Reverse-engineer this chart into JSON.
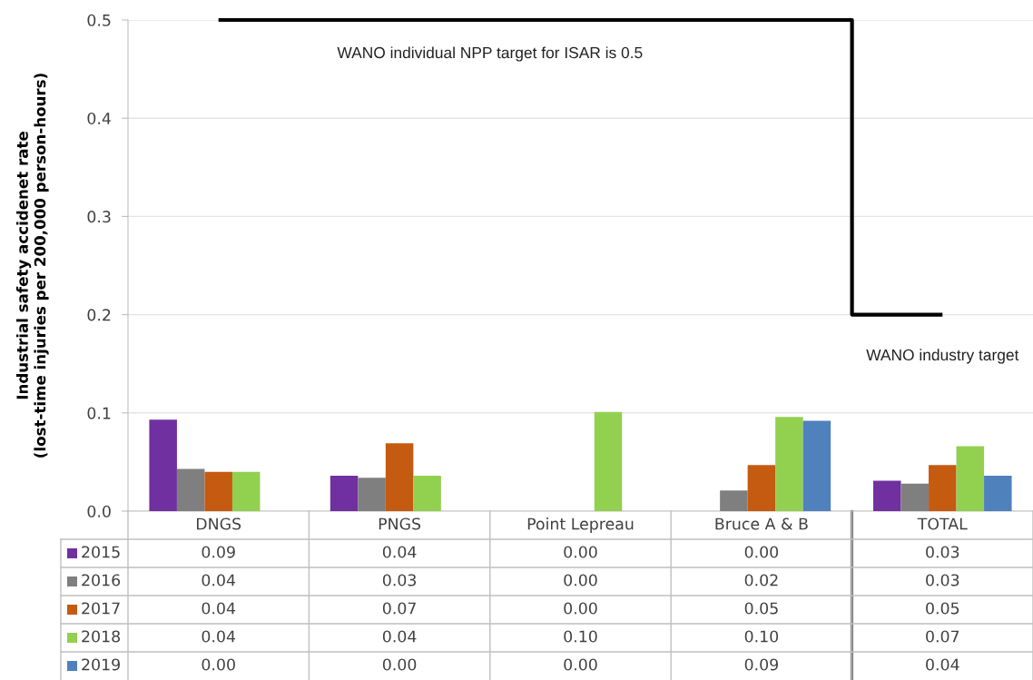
{
  "chart_data": {
    "type": "bar",
    "ylabel": "Industrial safety accidenet rate\n(lost-time injuries per 200,000 person-hours)",
    "categories": [
      "DNGS",
      "PNGS",
      "Point Lepreau",
      "Bruce A & B",
      "TOTAL"
    ],
    "series": [
      {
        "name": "2015",
        "color": "#7030a0",
        "values": [
          0.093,
          0.036,
          0,
          0,
          0.031
        ],
        "value_labels": [
          "0.09",
          "0.04",
          "0.00",
          "0.00",
          "0.03"
        ]
      },
      {
        "name": "2016",
        "color": "#7f7f7f",
        "values": [
          0.043,
          0.034,
          0,
          0.021,
          0.028
        ],
        "value_labels": [
          "0.04",
          "0.03",
          "0.00",
          "0.02",
          "0.03"
        ]
      },
      {
        "name": "2017",
        "color": "#c55a11",
        "values": [
          0.04,
          0.069,
          0,
          0.047,
          0.047
        ],
        "value_labels": [
          "0.04",
          "0.07",
          "0.00",
          "0.05",
          "0.05"
        ]
      },
      {
        "name": "2018",
        "color": "#92d050",
        "values": [
          0.04,
          0.036,
          0.101,
          0.096,
          0.066
        ],
        "value_labels": [
          "0.04",
          "0.04",
          "0.10",
          "0.10",
          "0.07"
        ]
      },
      {
        "name": "2019",
        "color": "#4f81bd",
        "values": [
          0,
          0,
          0,
          0.092,
          0.036
        ],
        "value_labels": [
          "0.00",
          "0.00",
          "0.00",
          "0.09",
          "0.04"
        ]
      },
      {
        "type": "step",
        "color": "#000000",
        "values": [
          0.5,
          0.5,
          0.5,
          0.5,
          0.2
        ]
      }
    ],
    "ylim": [
      0,
      0.5
    ],
    "yticks": [
      {
        "value": 0,
        "label": "0.0"
      },
      0.1,
      0.2,
      0.3,
      0.4,
      0.5
    ],
    "grid": "y",
    "legend": "bottom",
    "annotations": [
      "WANO individual NPP target for ISAR is 0.5",
      "WANO industry target"
    ]
  }
}
